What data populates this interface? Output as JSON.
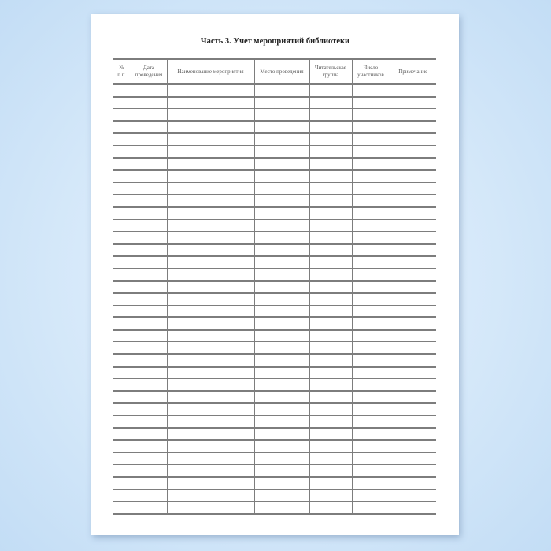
{
  "document": {
    "title": "Часть 3. Учет мероприятий библиотеки",
    "columns": [
      {
        "line1": "№",
        "line2": "п.п."
      },
      {
        "line1": "Дата",
        "line2": "проведения"
      },
      {
        "line1": "Наименование мероприятия",
        "line2": ""
      },
      {
        "line1": "Место проведения",
        "line2": ""
      },
      {
        "line1": "Читательская",
        "line2": "группа"
      },
      {
        "line1": "Число",
        "line2": "участников"
      },
      {
        "line1": "Примечание",
        "line2": ""
      }
    ],
    "empty_rows": 35
  }
}
